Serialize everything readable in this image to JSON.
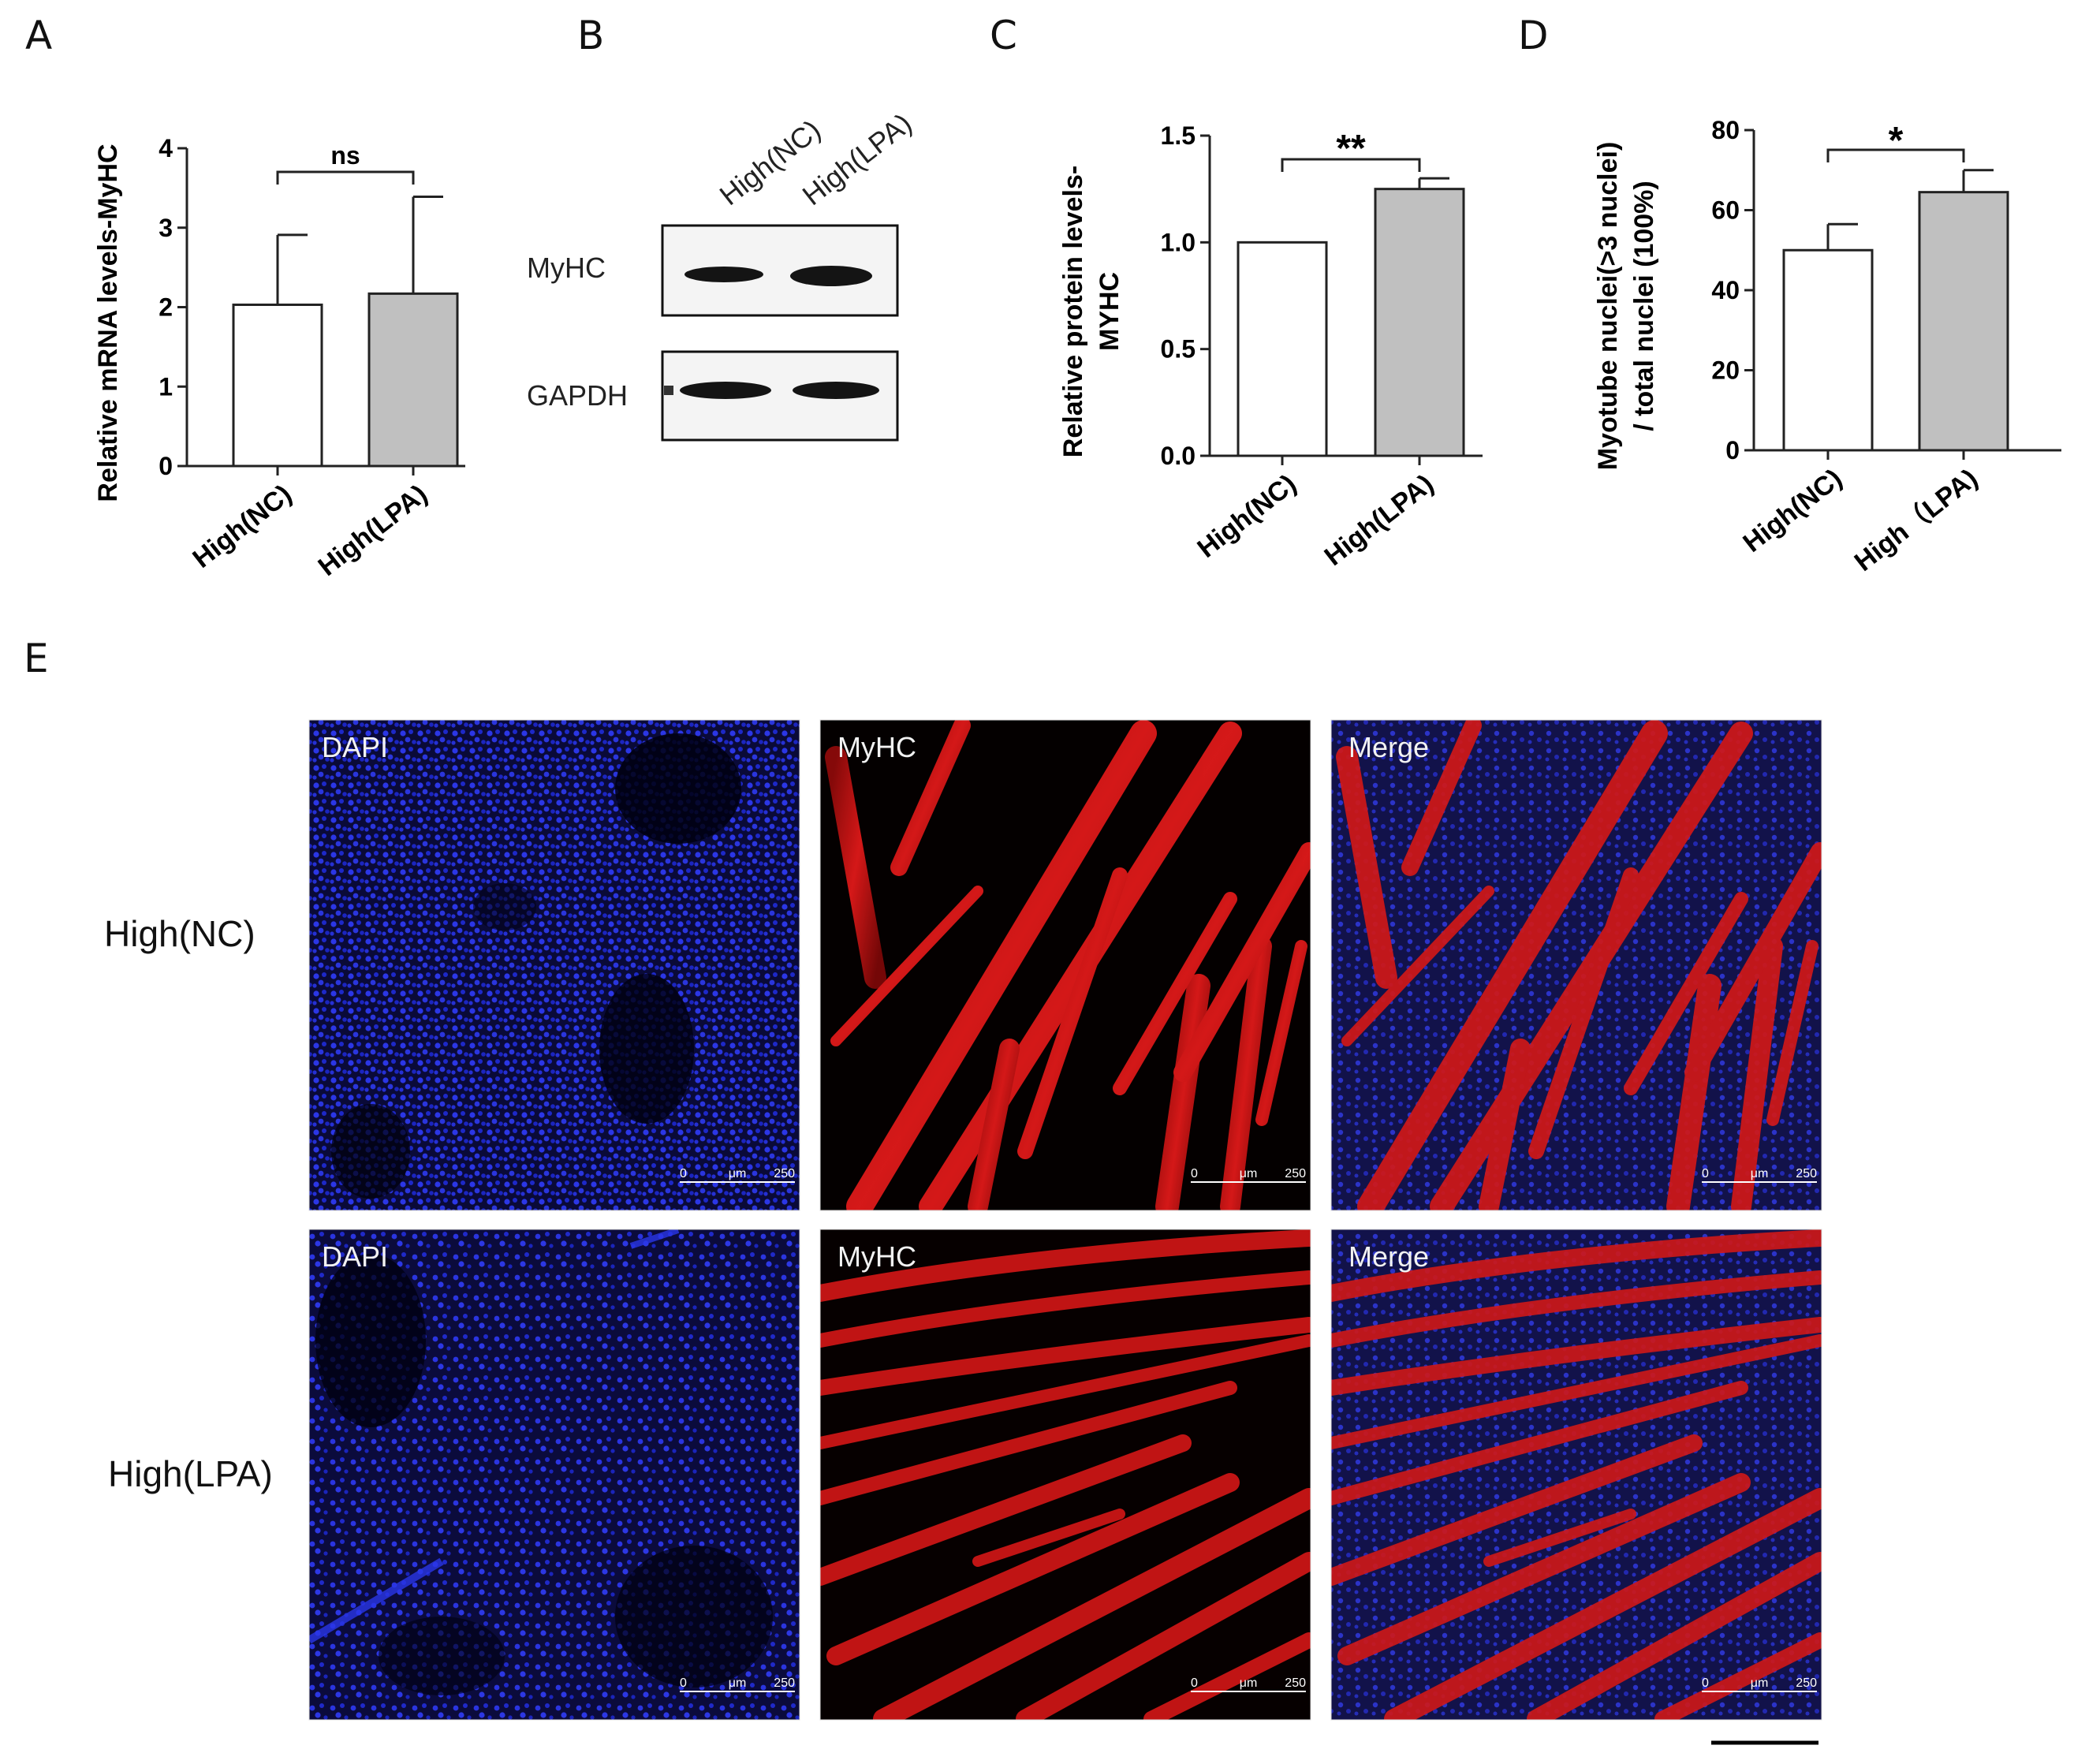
{
  "panel_letters": {
    "a": "A",
    "b": "B",
    "c": "C",
    "d": "D",
    "e": "E"
  },
  "chart_data": [
    {
      "panel": "A",
      "type": "bar",
      "categories": [
        "High(NC)",
        "High(LPA)"
      ],
      "values": [
        2.03,
        2.17
      ],
      "errors": [
        0.88,
        1.22
      ],
      "bar_colors": [
        "#ffffff",
        "#c0c0c0"
      ],
      "ylabel": "Relative mRNA levels-MyHC",
      "ylim": [
        0,
        4
      ],
      "yticks": [
        "0",
        "1",
        "2",
        "3",
        "4"
      ],
      "significance": "ns"
    },
    {
      "panel": "C",
      "type": "bar",
      "categories": [
        "High(NC)",
        "High(LPA)"
      ],
      "values": [
        1.0,
        1.25
      ],
      "errors": [
        0.0,
        0.05
      ],
      "bar_colors": [
        "#ffffff",
        "#c0c0c0"
      ],
      "ylabel_lines": [
        "Relative protein levels-",
        "MYHC"
      ],
      "ylim": [
        0,
        1.5
      ],
      "yticks": [
        "0.0",
        "0.5",
        "1.0",
        "1.5"
      ],
      "significance": "**"
    },
    {
      "panel": "D",
      "type": "bar",
      "categories": [
        "High(NC)",
        "High（LPA)"
      ],
      "values": [
        50,
        64.5
      ],
      "errors": [
        6.5,
        5.5
      ],
      "bar_colors": [
        "#ffffff",
        "#c0c0c0"
      ],
      "ylabel_lines": [
        "Myotube nuclei(>3 nuclei)",
        "/ total nuclei (100%)"
      ],
      "ylim": [
        0,
        80
      ],
      "yticks": [
        "0",
        "20",
        "40",
        "60",
        "80"
      ],
      "significance": "*"
    }
  ],
  "western_blot": {
    "lanes": [
      "High(NC)",
      "High(LPA)"
    ],
    "rows": [
      "MyHC",
      "GAPDH"
    ]
  },
  "microscopy": {
    "columns": [
      "DAPI",
      "MyHC",
      "Merge"
    ],
    "rows": [
      "High(NC)",
      "High(LPA)"
    ],
    "scale": {
      "start": "0",
      "unit": "μm",
      "end": "250"
    },
    "colors": {
      "dapi": "#1f2bd8",
      "myhc": "#d81414"
    }
  }
}
